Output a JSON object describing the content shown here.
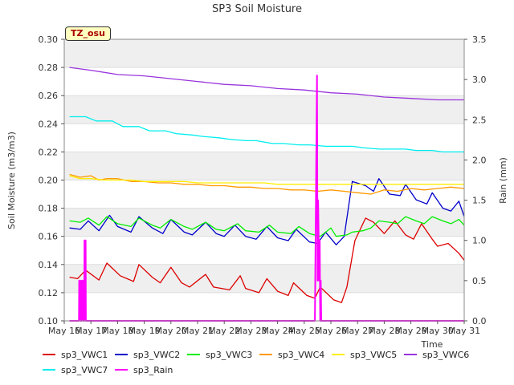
{
  "badge": "TZ_osu",
  "chart_data": {
    "type": "line",
    "title": "SP3 Soil Moisture",
    "xlabel": "Time",
    "ylabel": "Soil Moisture (m3/m3)",
    "y2label": "Rain (mm)",
    "xlim": [
      0,
      15
    ],
    "ylim": [
      0.1,
      0.3
    ],
    "y2lim": [
      0.0,
      3.5
    ],
    "x_tick_labels": [
      "May 16",
      "May 17",
      "May 18",
      "May 19",
      "May 20",
      "May 21",
      "May 22",
      "May 23",
      "May 24",
      "May 25",
      "May 26",
      "May 27",
      "May 28",
      "May 29",
      "May 30",
      "May 31"
    ],
    "y_tick_labels": [
      "0.10",
      "0.12",
      "0.14",
      "0.16",
      "0.18",
      "0.20",
      "0.22",
      "0.24",
      "0.26",
      "0.28",
      "0.30"
    ],
    "y2_tick_labels": [
      "0.0",
      "0.5",
      "1.0",
      "1.5",
      "2.0",
      "2.5",
      "3.0",
      "3.5"
    ],
    "grid": "horizontal bands",
    "legend_position": "bottom",
    "series": [
      {
        "name": "sp3_VWC1",
        "color": "#dd0000",
        "axis": "left",
        "x": [
          0.2,
          0.5,
          0.8,
          1.3,
          1.6,
          2.1,
          2.6,
          2.8,
          3.3,
          3.6,
          4.0,
          4.4,
          4.7,
          5.3,
          5.6,
          6.2,
          6.6,
          6.8,
          7.3,
          7.6,
          8.0,
          8.4,
          8.6,
          9.1,
          9.4,
          9.6,
          10.1,
          10.4,
          10.6,
          10.9,
          11.3,
          11.6,
          12.0,
          12.4,
          12.8,
          13.1,
          13.4,
          13.8,
          14.0,
          14.4,
          14.8,
          15.0
        ],
        "y": [
          0.131,
          0.13,
          0.136,
          0.129,
          0.141,
          0.132,
          0.128,
          0.14,
          0.131,
          0.127,
          0.138,
          0.127,
          0.124,
          0.133,
          0.124,
          0.122,
          0.132,
          0.123,
          0.12,
          0.13,
          0.121,
          0.118,
          0.127,
          0.118,
          0.116,
          0.124,
          0.115,
          0.113,
          0.124,
          0.157,
          0.173,
          0.17,
          0.162,
          0.171,
          0.161,
          0.158,
          0.169,
          0.158,
          0.153,
          0.155,
          0.148,
          0.143
        ]
      },
      {
        "name": "sp3_VWC2",
        "color": "#0000cc",
        "axis": "left",
        "x": [
          0.2,
          0.6,
          0.9,
          1.3,
          1.7,
          2.0,
          2.5,
          2.8,
          3.3,
          3.7,
          4.0,
          4.5,
          4.8,
          5.3,
          5.7,
          6.0,
          6.4,
          6.8,
          7.2,
          7.6,
          8.0,
          8.4,
          8.7,
          9.2,
          9.5,
          9.8,
          10.2,
          10.5,
          10.8,
          11.3,
          11.6,
          11.8,
          12.2,
          12.6,
          12.8,
          13.2,
          13.6,
          13.8,
          14.2,
          14.5,
          14.8,
          15.0
        ],
        "y": [
          0.166,
          0.165,
          0.171,
          0.164,
          0.175,
          0.167,
          0.163,
          0.174,
          0.166,
          0.162,
          0.172,
          0.163,
          0.161,
          0.17,
          0.162,
          0.16,
          0.168,
          0.16,
          0.158,
          0.167,
          0.159,
          0.157,
          0.165,
          0.156,
          0.155,
          0.163,
          0.154,
          0.16,
          0.199,
          0.196,
          0.192,
          0.201,
          0.19,
          0.189,
          0.197,
          0.186,
          0.183,
          0.191,
          0.18,
          0.178,
          0.185,
          0.174
        ]
      },
      {
        "name": "sp3_VWC3",
        "color": "#00ee00",
        "axis": "left",
        "x": [
          0.2,
          0.6,
          0.9,
          1.3,
          1.6,
          2.0,
          2.5,
          2.8,
          3.3,
          3.6,
          4.0,
          4.5,
          4.8,
          5.3,
          5.7,
          6.0,
          6.5,
          6.8,
          7.3,
          7.7,
          8.0,
          8.5,
          8.8,
          9.2,
          9.6,
          10.0,
          10.2,
          10.6,
          10.8,
          11.2,
          11.5,
          11.8,
          12.2,
          12.5,
          12.8,
          13.2,
          13.5,
          13.8,
          14.2,
          14.5,
          14.8,
          15.0
        ],
        "y": [
          0.171,
          0.17,
          0.173,
          0.168,
          0.174,
          0.169,
          0.167,
          0.173,
          0.168,
          0.166,
          0.172,
          0.167,
          0.165,
          0.17,
          0.165,
          0.164,
          0.169,
          0.164,
          0.163,
          0.168,
          0.163,
          0.162,
          0.167,
          0.162,
          0.16,
          0.166,
          0.16,
          0.161,
          0.163,
          0.164,
          0.166,
          0.171,
          0.17,
          0.169,
          0.174,
          0.171,
          0.169,
          0.174,
          0.171,
          0.169,
          0.172,
          0.168
        ]
      },
      {
        "name": "sp3_VWC4",
        "color": "#ff9900",
        "axis": "left",
        "x": [
          0.2,
          0.6,
          1.0,
          1.3,
          1.6,
          2.0,
          2.5,
          3.0,
          3.5,
          4.0,
          4.5,
          5.0,
          5.5,
          6.0,
          6.5,
          7.0,
          7.5,
          8.0,
          8.5,
          9.0,
          9.5,
          10.0,
          10.5,
          11.0,
          11.5,
          12.0,
          12.5,
          13.0,
          13.5,
          14.0,
          14.5,
          15.0
        ],
        "y": [
          0.204,
          0.202,
          0.203,
          0.2,
          0.201,
          0.201,
          0.199,
          0.199,
          0.198,
          0.198,
          0.197,
          0.197,
          0.196,
          0.196,
          0.195,
          0.195,
          0.194,
          0.194,
          0.193,
          0.193,
          0.192,
          0.193,
          0.192,
          0.191,
          0.19,
          0.193,
          0.192,
          0.194,
          0.193,
          0.194,
          0.195,
          0.194
        ]
      },
      {
        "name": "sp3_VWC5",
        "color": "#ffee00",
        "axis": "left",
        "x": [
          0.2,
          0.6,
          1.0,
          1.5,
          2.0,
          2.5,
          3.0,
          3.5,
          4.0,
          4.5,
          5.0,
          5.5,
          6.0,
          6.5,
          7.0,
          7.5,
          8.0,
          8.5,
          9.0,
          9.5,
          10.0,
          10.5,
          11.0,
          11.5,
          12.0,
          12.5,
          13.0,
          13.5,
          14.0,
          14.5,
          15.0
        ],
        "y": [
          0.203,
          0.201,
          0.201,
          0.2,
          0.2,
          0.2,
          0.199,
          0.199,
          0.199,
          0.199,
          0.198,
          0.198,
          0.198,
          0.198,
          0.198,
          0.198,
          0.197,
          0.197,
          0.197,
          0.197,
          0.197,
          0.197,
          0.197,
          0.197,
          0.197,
          0.197,
          0.197,
          0.197,
          0.197,
          0.197,
          0.197
        ]
      },
      {
        "name": "sp3_VWC6",
        "color": "#9933dd",
        "axis": "left",
        "x": [
          0.2,
          1.0,
          2.0,
          3.0,
          4.0,
          5.0,
          6.0,
          7.0,
          8.0,
          9.0,
          10.0,
          11.0,
          12.0,
          13.0,
          14.0,
          14.5,
          15.0
        ],
        "y": [
          0.28,
          0.278,
          0.275,
          0.274,
          0.272,
          0.27,
          0.268,
          0.267,
          0.265,
          0.264,
          0.262,
          0.261,
          0.259,
          0.258,
          0.257,
          0.257,
          0.257
        ]
      },
      {
        "name": "sp3_VWC7",
        "color": "#00eeee",
        "axis": "left",
        "x": [
          0.2,
          0.8,
          1.2,
          1.8,
          2.2,
          2.8,
          3.2,
          3.8,
          4.2,
          4.8,
          5.2,
          5.8,
          6.2,
          6.8,
          7.2,
          7.8,
          8.2,
          8.8,
          9.2,
          9.8,
          10.2,
          10.8,
          11.2,
          11.8,
          12.2,
          12.8,
          13.2,
          13.8,
          14.2,
          14.8,
          15.0
        ],
        "y": [
          0.245,
          0.245,
          0.242,
          0.242,
          0.238,
          0.238,
          0.235,
          0.235,
          0.233,
          0.232,
          0.231,
          0.23,
          0.229,
          0.228,
          0.228,
          0.226,
          0.226,
          0.225,
          0.225,
          0.224,
          0.224,
          0.224,
          0.223,
          0.222,
          0.222,
          0.222,
          0.221,
          0.221,
          0.22,
          0.22,
          0.22
        ]
      },
      {
        "name": "sp3_Rain",
        "color": "#ff00ff",
        "axis": "right",
        "x": [
          0.2,
          0.55,
          0.56,
          0.6,
          0.61,
          0.65,
          0.66,
          0.7,
          0.71,
          0.75,
          0.76,
          0.8,
          0.81,
          9.4,
          9.48,
          9.5,
          9.52,
          9.56,
          9.58,
          9.6,
          9.62,
          9.64,
          15.0
        ],
        "y": [
          0.0,
          0.0,
          0.5,
          0.5,
          0.0,
          0.0,
          0.5,
          0.5,
          0.0,
          0.0,
          1.0,
          1.0,
          0.0,
          0.0,
          3.05,
          0.5,
          1.5,
          0.5,
          1.0,
          0.0,
          0.5,
          0.0,
          0.0
        ]
      }
    ]
  }
}
